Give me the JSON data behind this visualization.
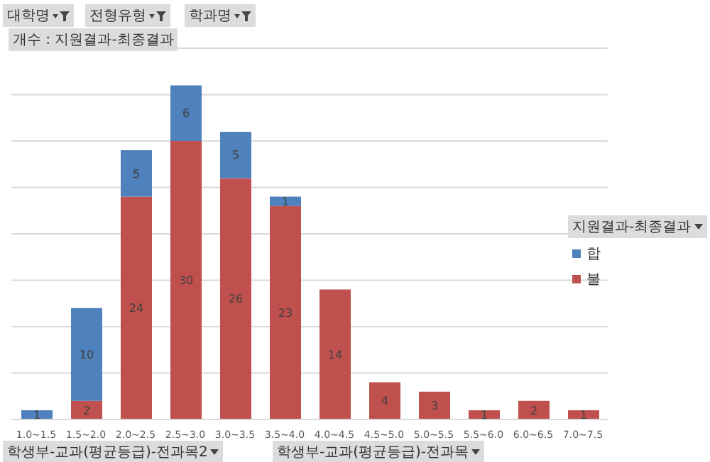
{
  "chart_data": {
    "type": "bar",
    "title": "개수 : 지원결과-최종결과",
    "legend_title": "지원결과-최종결과",
    "annotations": [
      "대학명",
      "전형유형",
      "학과명",
      "학생부-교과(평균등급)-전과목2",
      "학생부-교과(평균등급)-전과목"
    ],
    "categories": [
      "1.0~1.5",
      "1.5~2.0",
      "2.0~2.5",
      "2.5~3.0",
      "3.0~3.5",
      "3.5~4.0",
      "4.0~4.5",
      "4.5~5.0",
      "5.0~5.5",
      "5.5~6.0",
      "6.0~6.5",
      "7.0~7.5"
    ],
    "series": [
      {
        "name": "불",
        "color": "#c0504d",
        "values": [
          null,
          2,
          24,
          30,
          26,
          23,
          14,
          4,
          3,
          1,
          2,
          1
        ]
      },
      {
        "name": "합",
        "color": "#4f81bd",
        "values": [
          1,
          10,
          5,
          6,
          5,
          1,
          null,
          null,
          null,
          null,
          null,
          null
        ]
      }
    ],
    "stacked": true,
    "ylim": [
      0,
      40
    ],
    "yticks": [
      {
        "value": 0,
        "label": null
      },
      {
        "value": 5,
        "label": null
      },
      {
        "value": 10,
        "label": null
      },
      {
        "value": 15,
        "label": null
      },
      {
        "value": 20,
        "label": null
      },
      {
        "value": 25,
        "label": null
      },
      {
        "value": 30,
        "label": null
      },
      {
        "value": 35,
        "label": null
      },
      {
        "value": 40,
        "label": null
      }
    ],
    "tick_labels": "x",
    "grid": "y",
    "legend": "right",
    "data_labels": true
  }
}
